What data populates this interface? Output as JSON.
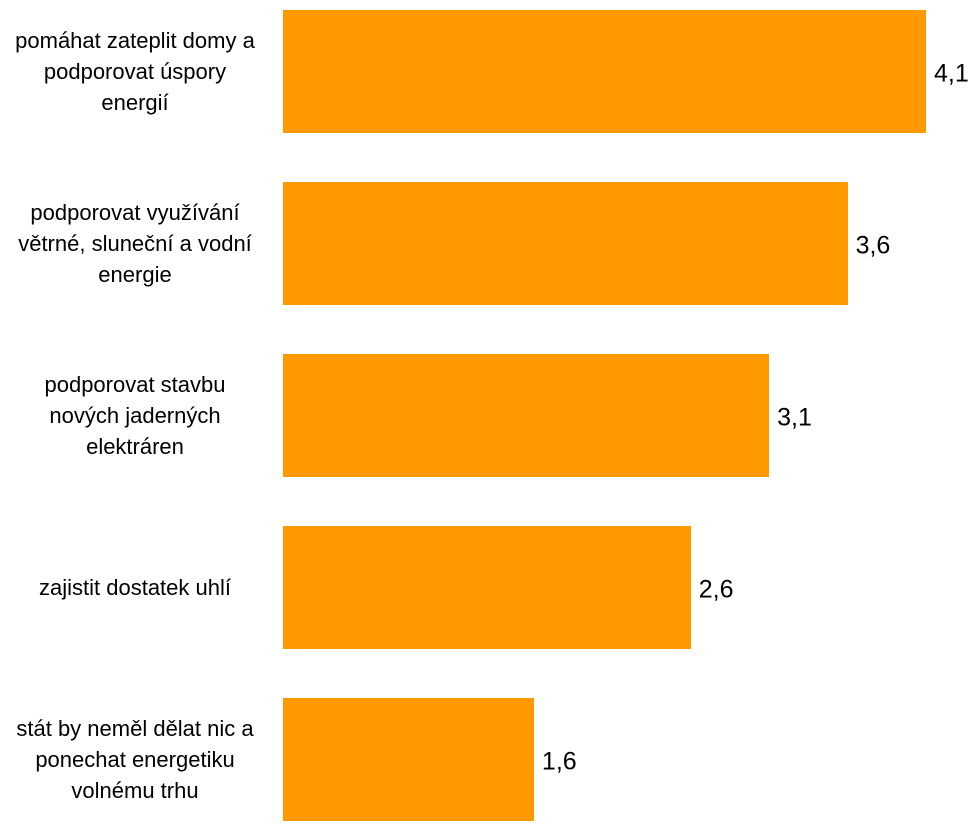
{
  "chart_data": {
    "type": "bar",
    "orientation": "horizontal",
    "categories": [
      "pomáhat zateplit domy a podporovat úspory energií",
      "podporovat využívání větrné, sluneční a vodní energie",
      "podporovat stavbu nových jaderných elektráren",
      "zajistit dostatek uhlí",
      "stát by neměl dělat nic a ponechat energetiku volnému trhu"
    ],
    "values": [
      4.1,
      3.6,
      3.1,
      2.6,
      1.6
    ],
    "value_labels": [
      "4,1",
      "3,6",
      "3,1",
      "2,6",
      "1,6"
    ],
    "color": "#ff9900"
  }
}
